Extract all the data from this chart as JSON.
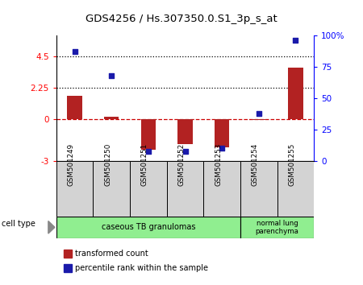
{
  "title": "GDS4256 / Hs.307350.0.S1_3p_s_at",
  "samples": [
    "GSM501249",
    "GSM501250",
    "GSM501251",
    "GSM501252",
    "GSM501253",
    "GSM501254",
    "GSM501255"
  ],
  "transformed_count": [
    1.7,
    0.2,
    -2.2,
    -1.8,
    -2.0,
    -0.05,
    3.7
  ],
  "percentile_rank": [
    87,
    68,
    8,
    8,
    10,
    38,
    96
  ],
  "ylim_left": [
    -3,
    6
  ],
  "ylim_right": [
    0,
    100
  ],
  "yticks_left": [
    -3,
    0,
    2.25,
    4.5
  ],
  "yticks_left_labels": [
    "-3",
    "0",
    "2.25",
    "4.5"
  ],
  "yticks_right": [
    0,
    25,
    50,
    75,
    100
  ],
  "yticks_right_labels": [
    "0",
    "25",
    "50",
    "75",
    "100%"
  ],
  "hlines": [
    4.5,
    2.25
  ],
  "bar_color": "#b22222",
  "dot_color": "#1a1aaa",
  "zero_line_color": "#cc0000",
  "cell_type_label": "cell type",
  "legend_bar_label": "transformed count",
  "legend_dot_label": "percentile rank within the sample",
  "plot_bg_color": "#ffffff",
  "sample_box_color": "#d3d3d3",
  "group1_label": "caseous TB granulomas",
  "group2_label": "normal lung\nparenchyma",
  "group_color": "#90ee90"
}
